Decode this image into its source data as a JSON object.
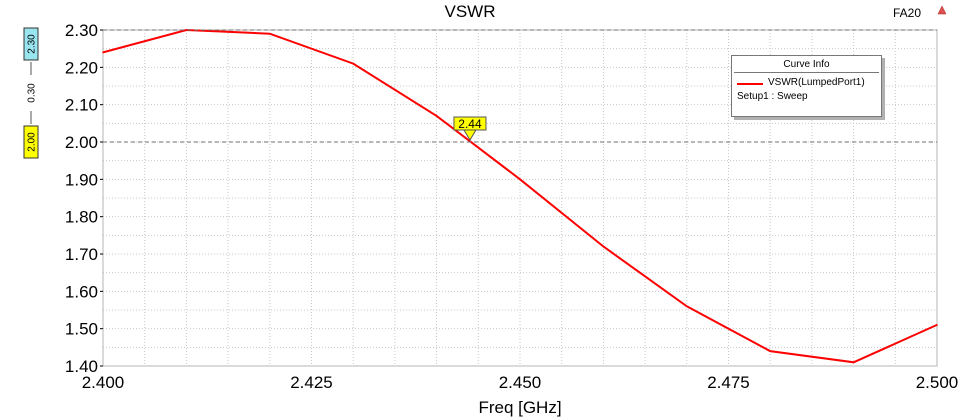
{
  "chart_data": {
    "type": "line",
    "title": "VSWR",
    "corner_label": "FA20",
    "xlabel": "Freq [GHz]",
    "ylabel": "",
    "xlim": [
      2.4,
      2.5
    ],
    "ylim": [
      1.4,
      2.3
    ],
    "x_ticks": [
      "2.400",
      "2.425",
      "2.450",
      "2.475",
      "2.500"
    ],
    "y_ticks": [
      "1.40",
      "1.50",
      "1.60",
      "1.70",
      "1.80",
      "1.90",
      "2.00",
      "2.10",
      "2.20",
      "2.30"
    ],
    "grid": true,
    "legend_position": "top-right",
    "series": [
      {
        "name": "VSWR(LumpedPort1)",
        "color": "#ff0000",
        "x": [
          2.4,
          2.41,
          2.42,
          2.43,
          2.44,
          2.45,
          2.46,
          2.47,
          2.48,
          2.49,
          2.5
        ],
        "y": [
          2.24,
          2.3,
          2.29,
          2.21,
          2.07,
          1.9,
          1.72,
          1.56,
          1.44,
          1.41,
          1.51
        ]
      }
    ],
    "legend": {
      "title": "Curve Info",
      "entry": "VSWR(LumpedPort1)",
      "subtext": "Setup1 : Sweep"
    },
    "markers": {
      "y_cursor_top": "2.30",
      "y_cursor_bottom": "2.00",
      "delta": "0.30",
      "x_marker_label": "2.44",
      "x_marker_value": 2.444,
      "y_marker_value": 2.0,
      "top_color": "#99e6f0",
      "bottom_color": "#ffff00"
    }
  }
}
